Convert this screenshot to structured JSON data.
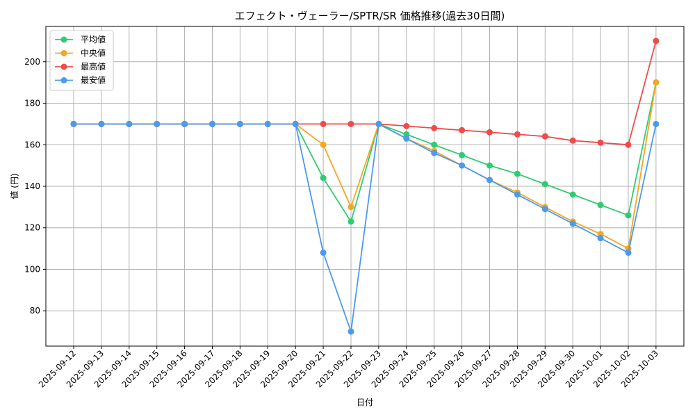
{
  "chart_data": {
    "type": "line",
    "title": "エフェクト・ヴェーラー/SPTR/SR 価格推移(過去30日間)",
    "xlabel": "日付",
    "ylabel": "値 (円)",
    "ylim": [
      63,
      217
    ],
    "yticks": [
      80,
      100,
      120,
      140,
      160,
      180,
      200
    ],
    "grid": true,
    "legend_position": "top-left",
    "categories": [
      "2025-09-12",
      "2025-09-13",
      "2025-09-14",
      "2025-09-15",
      "2025-09-16",
      "2025-09-17",
      "2025-09-18",
      "2025-09-19",
      "2025-09-20",
      "2025-09-21",
      "2025-09-22",
      "2025-09-23",
      "2025-09-24",
      "2025-09-25",
      "2025-09-26",
      "2025-09-27",
      "2025-09-28",
      "2025-09-29",
      "2025-09-30",
      "2025-10-01",
      "2025-10-02",
      "2025-10-03"
    ],
    "series": [
      {
        "name": "平均値",
        "color": "#2ecc71",
        "values": [
          170,
          170,
          170,
          170,
          170,
          170,
          170,
          170,
          170,
          144,
          123,
          170,
          165,
          160,
          155,
          150,
          146,
          141,
          136,
          131,
          126,
          190
        ]
      },
      {
        "name": "中央値",
        "color": "#f5a623",
        "values": [
          170,
          170,
          170,
          170,
          170,
          170,
          170,
          170,
          170,
          160,
          130,
          170,
          163,
          157,
          150,
          143,
          137,
          130,
          123,
          117,
          110,
          190
        ]
      },
      {
        "name": "最高値",
        "color": "#ef4b4b",
        "values": [
          170,
          170,
          170,
          170,
          170,
          170,
          170,
          170,
          170,
          170,
          170,
          170,
          169,
          168,
          167,
          166,
          165,
          164,
          162,
          161,
          160,
          210
        ]
      },
      {
        "name": "最安値",
        "color": "#4a9af0",
        "values": [
          170,
          170,
          170,
          170,
          170,
          170,
          170,
          170,
          170,
          108,
          70,
          170,
          163,
          156,
          150,
          143,
          136,
          129,
          122,
          115,
          108,
          170
        ]
      }
    ]
  }
}
